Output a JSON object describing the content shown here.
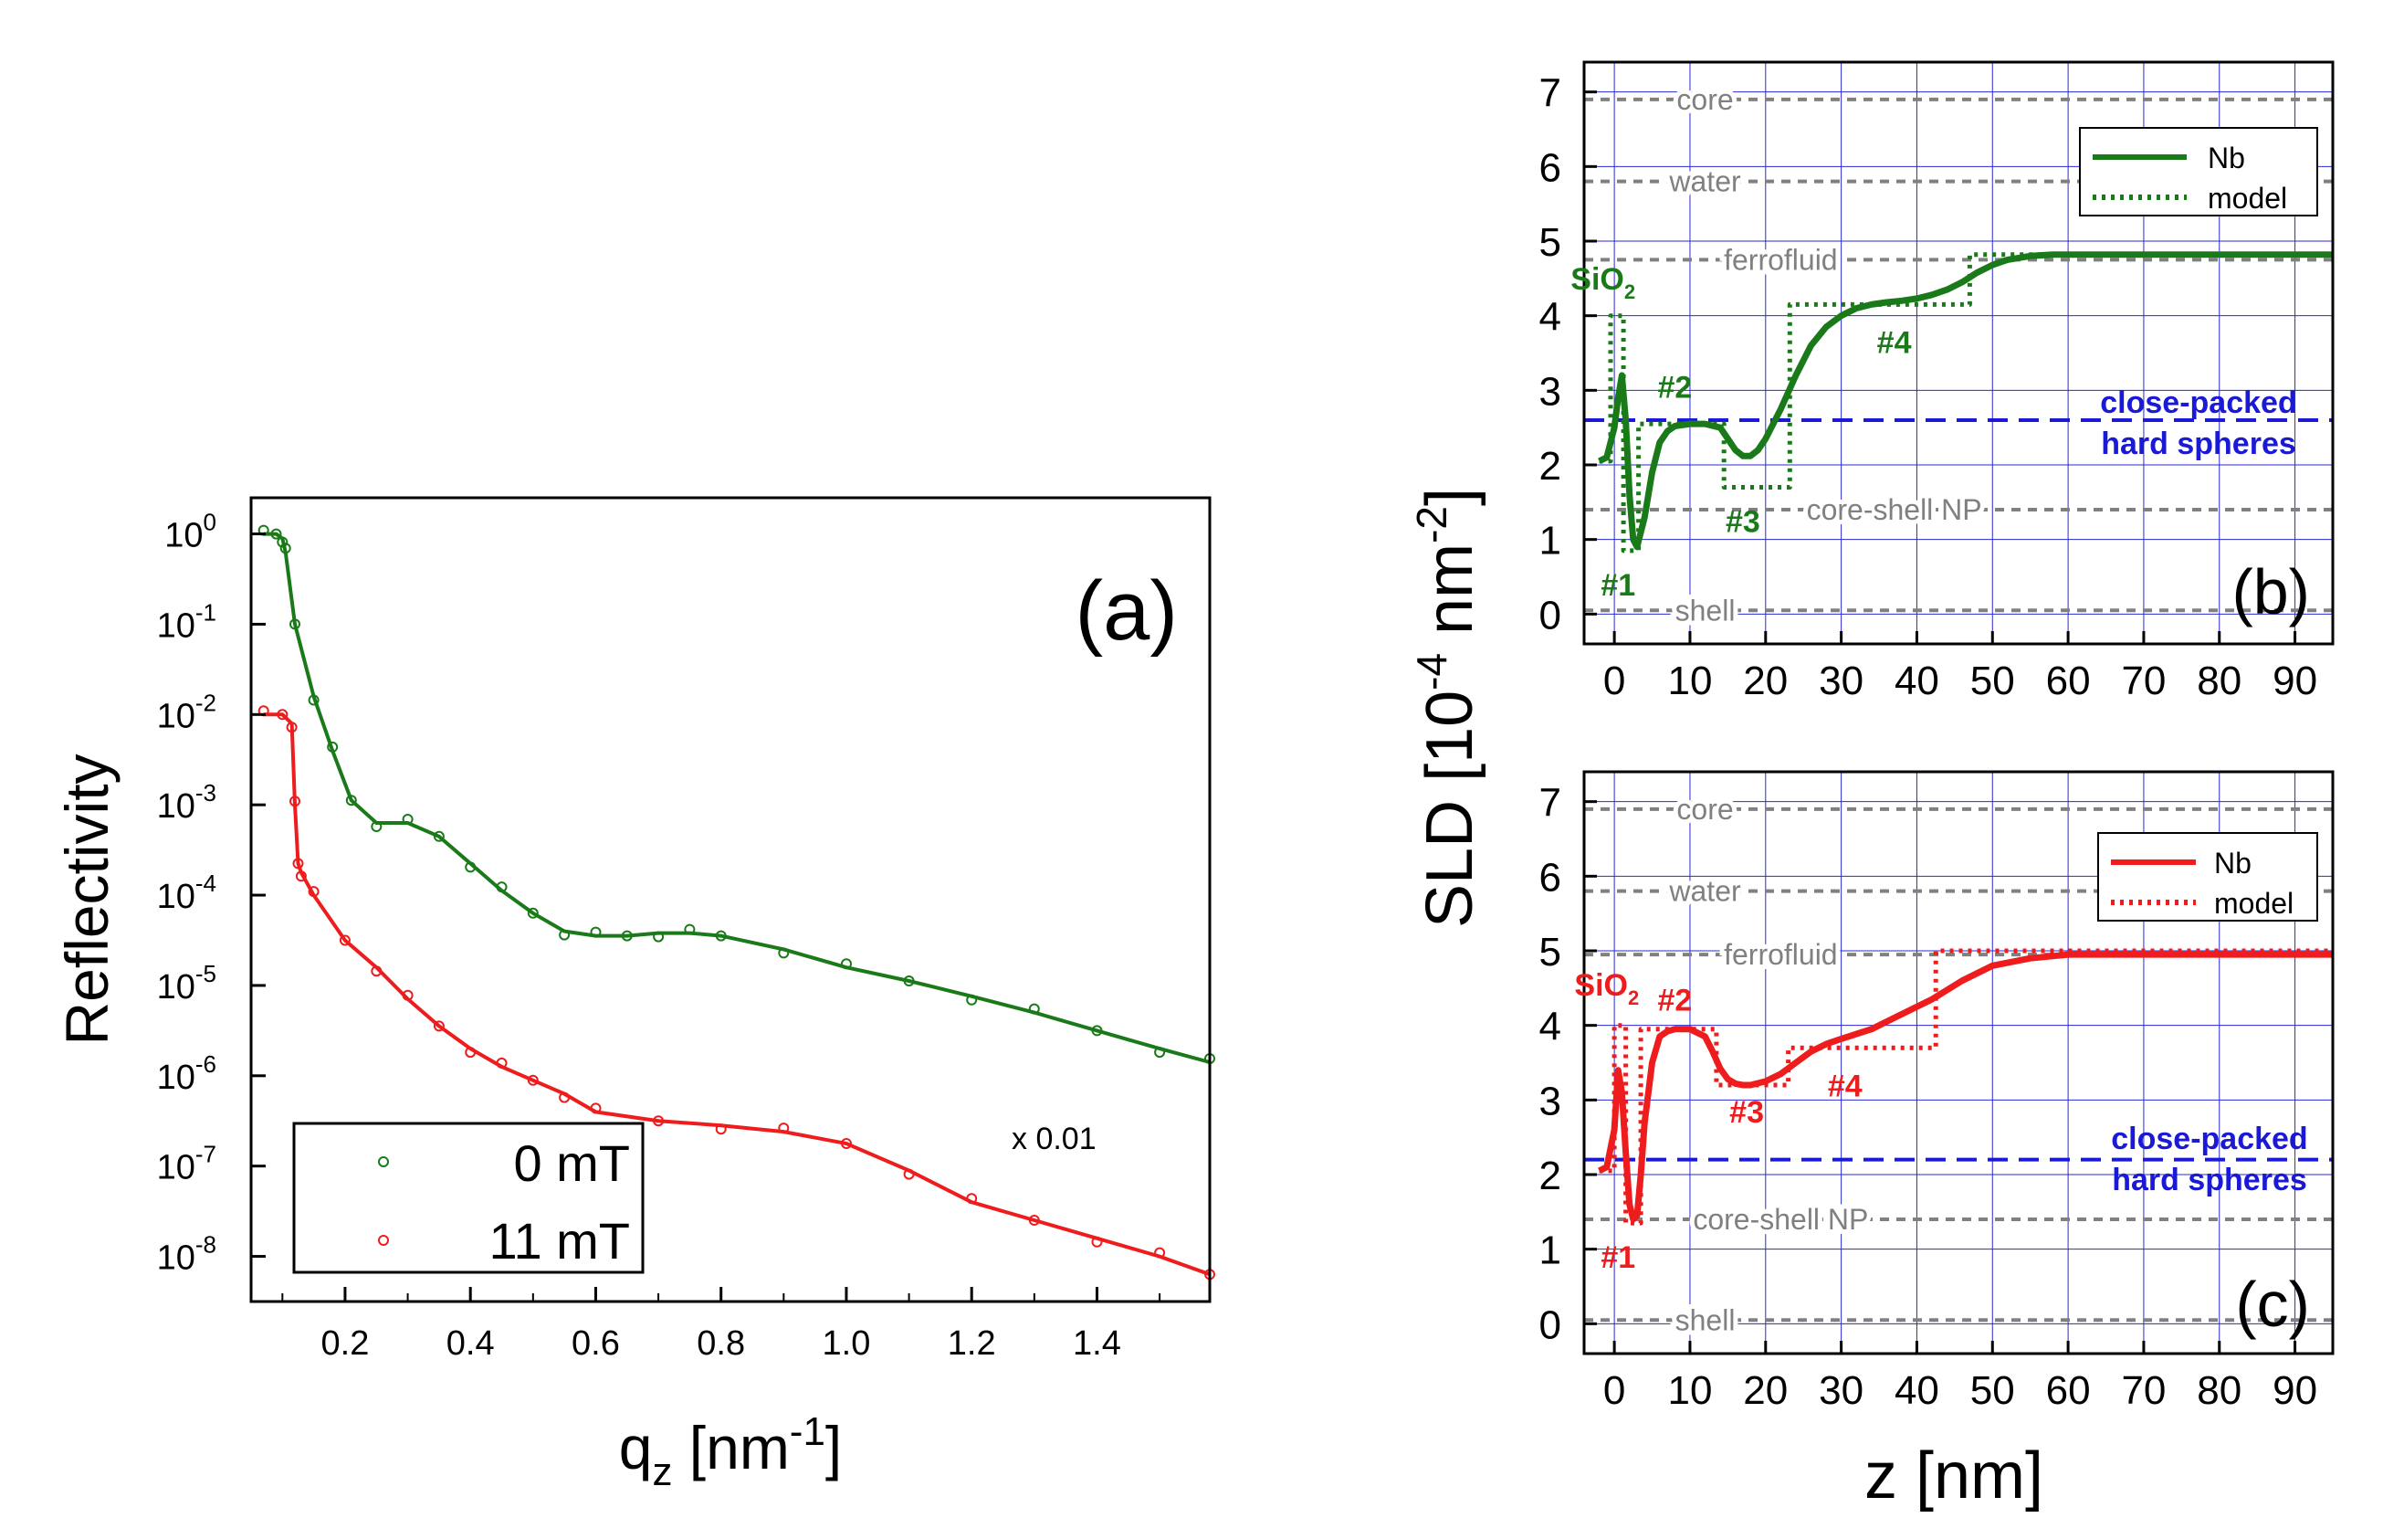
{
  "colors": {
    "green": "#1a7a1a",
    "red": "#ee1c1c",
    "grey": "#808080",
    "blue": "#1a1ad6",
    "grid": "#2a2ad0",
    "black": "#000000"
  },
  "chart_data": [
    {
      "id": "a",
      "type": "scatter",
      "panel_label": "(a)",
      "ylabel": "Reflectivity",
      "xlabel_main": "q",
      "xlabel_sub": "z",
      "xlabel_unit": " [nm",
      "xlabel_sup": "-1",
      "xlabel_close": "]",
      "xlim": [
        0.05,
        1.58
      ],
      "ylim_log10": [
        -8.5,
        0.4
      ],
      "log_scale": "y",
      "xticks": [
        0.2,
        0.4,
        0.6,
        0.8,
        1.0,
        1.2,
        1.4
      ],
      "xtick_labels": [
        "0.2",
        "0.4",
        "0.6",
        "0.8",
        "1.0",
        "1.2",
        "1.4"
      ],
      "ytick_exponents": [
        "0",
        "-1",
        "-2",
        "-3",
        "-4",
        "-5",
        "-6",
        "-7",
        "-8"
      ],
      "ytick_base": "10",
      "annotation": "x 0.01",
      "legend": [
        {
          "label": "0 mT",
          "color": "#1a7a1a"
        },
        {
          "label": "11 mT",
          "color": "#ee1c1c"
        }
      ],
      "series": [
        {
          "name": "0 mT",
          "color": "#1a7a1a",
          "x": [
            0.07,
            0.09,
            0.1,
            0.105,
            0.12,
            0.15,
            0.18,
            0.21,
            0.25,
            0.3,
            0.35,
            0.4,
            0.45,
            0.5,
            0.55,
            0.6,
            0.65,
            0.7,
            0.75,
            0.8,
            0.9,
            1.0,
            1.1,
            1.2,
            1.3,
            1.4,
            1.5,
            1.58
          ],
          "log10_y": [
            0.0,
            0.0,
            -0.05,
            -0.2,
            -1.0,
            -1.8,
            -2.4,
            -2.95,
            -3.2,
            -3.2,
            -3.35,
            -3.65,
            -3.95,
            -4.2,
            -4.4,
            -4.45,
            -4.45,
            -4.42,
            -4.42,
            -4.45,
            -4.6,
            -4.8,
            -4.95,
            -5.12,
            -5.3,
            -5.5,
            -5.7,
            -5.85
          ]
        },
        {
          "name": "11 mT",
          "color": "#ee1c1c",
          "x": [
            0.07,
            0.1,
            0.115,
            0.12,
            0.125,
            0.13,
            0.15,
            0.2,
            0.25,
            0.3,
            0.35,
            0.4,
            0.45,
            0.5,
            0.55,
            0.6,
            0.7,
            0.8,
            0.9,
            1.0,
            1.1,
            1.2,
            1.3,
            1.4,
            1.5,
            1.58
          ],
          "log10_y": [
            -2.0,
            -2.0,
            -2.1,
            -3.0,
            -3.65,
            -3.75,
            -4.0,
            -4.5,
            -4.8,
            -5.15,
            -5.45,
            -5.7,
            -5.9,
            -6.05,
            -6.2,
            -6.4,
            -6.5,
            -6.55,
            -6.62,
            -6.75,
            -7.05,
            -7.4,
            -7.6,
            -7.8,
            -8.0,
            -8.2
          ]
        }
      ]
    },
    {
      "id": "b",
      "type": "line",
      "panel_label": "(b)",
      "xlim": [
        -4,
        95
      ],
      "ylim": [
        -0.4,
        7.4
      ],
      "xticks": [
        0,
        10,
        20,
        30,
        40,
        50,
        60,
        70,
        80,
        90
      ],
      "xtick_labels": [
        "0",
        "10",
        "20",
        "30",
        "40",
        "50",
        "60",
        "70",
        "80",
        "90"
      ],
      "yticks": [
        0,
        1,
        2,
        3,
        4,
        5,
        6,
        7
      ],
      "ytick_labels": [
        "0",
        "1",
        "2",
        "3",
        "4",
        "5",
        "6",
        "7"
      ],
      "hlines": [
        {
          "y": 6.9,
          "label": "core",
          "label_x": 12
        },
        {
          "y": 5.8,
          "label": "water",
          "label_x": 12
        },
        {
          "y": 4.75,
          "label": "ferrofluid",
          "label_x": 22
        },
        {
          "y": 1.4,
          "label": "core-shell NP",
          "label_x": 37
        },
        {
          "y": 0.05,
          "label": "shell",
          "label_x": 12
        }
      ],
      "blue_line": {
        "y": 2.6,
        "label_line1": "close-packed",
        "label_line2": "hard spheres"
      },
      "legend": [
        {
          "label": "Nb",
          "style": "solid"
        },
        {
          "label": "model",
          "style": "dotted"
        }
      ],
      "layer_labels": [
        {
          "text": "SiO",
          "sub": "2",
          "x": -1.5,
          "y": 4.35
        },
        {
          "text": "#1",
          "x": 0.5,
          "y": 0.25
        },
        {
          "text": "#2",
          "x": 8,
          "y": 2.9
        },
        {
          "text": "#3",
          "x": 17,
          "y": 1.1
        },
        {
          "text": "#4",
          "x": 37,
          "y": 3.5
        }
      ],
      "series": [
        {
          "name": "Nb",
          "x": [
            -2,
            -1,
            0,
            0.5,
            1,
            1.5,
            2,
            2.5,
            3,
            4,
            5,
            6,
            7,
            8,
            10,
            12,
            14,
            15,
            16,
            17,
            18,
            19,
            20,
            22,
            24,
            26,
            28,
            30,
            32,
            34,
            36,
            38,
            40,
            42,
            44,
            46,
            48,
            50,
            52,
            55,
            58,
            62,
            70,
            95
          ],
          "y": [
            2.05,
            2.1,
            2.5,
            2.9,
            3.2,
            2.6,
            1.6,
            1.0,
            0.9,
            1.3,
            1.9,
            2.3,
            2.45,
            2.52,
            2.55,
            2.55,
            2.5,
            2.35,
            2.2,
            2.12,
            2.12,
            2.2,
            2.35,
            2.75,
            3.2,
            3.6,
            3.85,
            4.0,
            4.1,
            4.15,
            4.18,
            4.2,
            4.23,
            4.28,
            4.35,
            4.45,
            4.58,
            4.68,
            4.75,
            4.8,
            4.82,
            4.82,
            4.82,
            4.82
          ]
        },
        {
          "name": "model",
          "x": [
            -2,
            -0.5,
            -0.5,
            1.2,
            1.2,
            3.2,
            3.2,
            5,
            5,
            14.5,
            14.5,
            23.2,
            23.2,
            47,
            47,
            95
          ],
          "y": [
            2.05,
            2.05,
            4.0,
            4.0,
            0.85,
            0.85,
            2.55,
            2.55,
            2.55,
            2.55,
            1.7,
            1.7,
            4.15,
            4.15,
            4.82,
            4.82
          ]
        }
      ]
    },
    {
      "id": "c",
      "type": "line",
      "panel_label": "(c)",
      "xlim": [
        -4,
        95
      ],
      "ylim": [
        -0.4,
        7.4
      ],
      "xticks": [
        0,
        10,
        20,
        30,
        40,
        50,
        60,
        70,
        80,
        90
      ],
      "xtick_labels": [
        "0",
        "10",
        "20",
        "30",
        "40",
        "50",
        "60",
        "70",
        "80",
        "90"
      ],
      "yticks": [
        0,
        1,
        2,
        3,
        4,
        5,
        6,
        7
      ],
      "ytick_labels": [
        "0",
        "1",
        "2",
        "3",
        "4",
        "5",
        "6",
        "7"
      ],
      "hlines": [
        {
          "y": 6.9,
          "label": "core",
          "label_x": 12
        },
        {
          "y": 5.8,
          "label": "water",
          "label_x": 12
        },
        {
          "y": 4.95,
          "label": "ferrofluid",
          "label_x": 22
        },
        {
          "y": 1.4,
          "label": "core-shell NP",
          "label_x": 22
        },
        {
          "y": 0.05,
          "label": "shell",
          "label_x": 12
        }
      ],
      "blue_line": {
        "y": 2.2,
        "label_line1": "close-packed",
        "label_line2": "hard spheres"
      },
      "legend": [
        {
          "label": "Nb",
          "style": "solid"
        },
        {
          "label": "model",
          "style": "dotted"
        }
      ],
      "layer_labels": [
        {
          "text": "SiO",
          "sub": "2",
          "x": -1,
          "y": 4.4
        },
        {
          "text": "#1",
          "x": 0.5,
          "y": 0.75
        },
        {
          "text": "#2",
          "x": 8,
          "y": 4.2
        },
        {
          "text": "#3",
          "x": 17.5,
          "y": 2.7
        },
        {
          "text": "#4",
          "x": 30.5,
          "y": 3.05
        }
      ],
      "series": [
        {
          "name": "Nb",
          "x": [
            -2,
            -1,
            0,
            0.5,
            1,
            1.5,
            2,
            2.5,
            3,
            3.5,
            4,
            5,
            6,
            7,
            8,
            10,
            12,
            13,
            14,
            15,
            16,
            17,
            18,
            20,
            22,
            24,
            26,
            28,
            30,
            34,
            38,
            42,
            46,
            50,
            55,
            60,
            70,
            95
          ],
          "y": [
            2.05,
            2.1,
            2.6,
            3.4,
            3.1,
            2.3,
            1.6,
            1.4,
            1.45,
            2.0,
            2.7,
            3.5,
            3.85,
            3.92,
            3.95,
            3.95,
            3.85,
            3.65,
            3.42,
            3.28,
            3.22,
            3.2,
            3.2,
            3.25,
            3.35,
            3.5,
            3.65,
            3.75,
            3.82,
            3.95,
            4.15,
            4.35,
            4.6,
            4.8,
            4.9,
            4.95,
            4.95,
            4.95
          ]
        },
        {
          "name": "model",
          "x": [
            -2,
            0,
            0,
            1.5,
            1.5,
            3.5,
            3.5,
            5,
            5,
            13.5,
            13.5,
            23,
            23,
            28,
            28,
            42.5,
            42.5,
            95
          ],
          "y": [
            2.05,
            2.05,
            4.0,
            4.0,
            1.35,
            1.35,
            3.95,
            3.95,
            3.95,
            3.95,
            3.2,
            3.2,
            3.7,
            3.7,
            3.7,
            3.7,
            5.0,
            5.0
          ]
        }
      ]
    }
  ],
  "shared": {
    "sld_label": "SLD [10",
    "sld_sup1": "-4",
    "sld_mid": " nm",
    "sld_sup2": "-2",
    "sld_close": "]",
    "z_label": "z [nm]"
  }
}
